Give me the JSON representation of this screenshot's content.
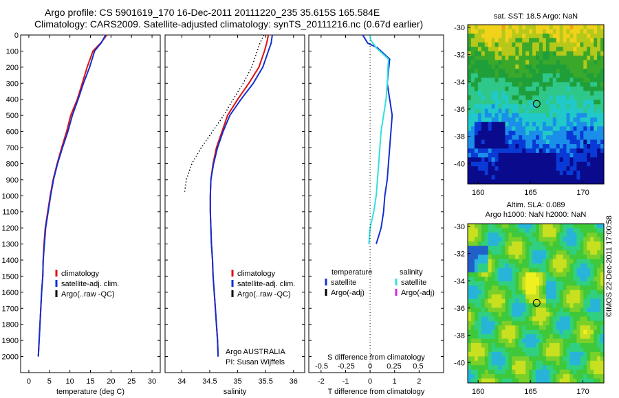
{
  "header": {
    "title_line1": "Argo profile: CS 5901619_170 16-Dec-2011 20111220_235 35.615S 165.584E",
    "title_line2": "Climatology: CARS2009. Satellite-adjusted climatology: synTS_20111216.nc (0.67d earlier)"
  },
  "credit": "©IMOS 22-Dec-2011 17:00:58",
  "colors": {
    "climatology": "#e01010",
    "satellite": "#1030d0",
    "argo": "#000000",
    "salinity_satellite": "#30e0e0",
    "salinity_argo": "#e020e0"
  },
  "chart_data": [
    {
      "type": "line",
      "panel": "temperature profile",
      "xlabel": "temperature (deg C)",
      "xlim": [
        -2,
        32
      ],
      "xticks": [
        0,
        5,
        10,
        15,
        20,
        25,
        30
      ],
      "ylim": [
        2100,
        0
      ],
      "yticks": [
        0,
        100,
        200,
        300,
        400,
        500,
        600,
        700,
        800,
        900,
        1000,
        1100,
        1200,
        1300,
        1400,
        1500,
        1600,
        1700,
        1800,
        1900,
        2000
      ],
      "legend": [
        "climatology",
        "satellite-adj. clim.",
        "Argo(..raw -QC)"
      ],
      "series": [
        {
          "name": "climatology",
          "color_key": "climatology",
          "x": [
            19.0,
            17.5,
            15.6,
            14.2,
            13.0,
            11.8,
            10.2,
            9.2,
            8.0,
            6.9,
            5.9,
            5.2,
            4.6,
            4.0,
            3.7,
            3.5,
            3.4,
            3.1,
            2.9,
            2.7,
            2.5,
            2.3
          ],
          "y": [
            0,
            50,
            100,
            200,
            300,
            400,
            500,
            600,
            700,
            800,
            900,
            1000,
            1100,
            1200,
            1300,
            1400,
            1500,
            1600,
            1700,
            1800,
            1900,
            2000
          ]
        },
        {
          "name": "satellite-adj. clim.",
          "color_key": "satellite",
          "x": [
            18.7,
            17.6,
            16.0,
            14.8,
            13.3,
            12.0,
            10.6,
            9.5,
            8.2,
            7.0,
            6.0,
            5.3,
            4.7,
            4.1,
            3.8,
            3.5,
            3.4,
            3.1,
            2.9,
            2.7,
            2.5,
            2.3
          ],
          "y": [
            0,
            50,
            100,
            200,
            300,
            400,
            500,
            600,
            700,
            800,
            900,
            1000,
            1100,
            1200,
            1300,
            1400,
            1500,
            1600,
            1700,
            1800,
            1900,
            2000
          ]
        }
      ]
    },
    {
      "type": "line",
      "panel": "salinity profile",
      "xlabel": "salinity",
      "xlim": [
        33.7,
        36.2
      ],
      "xticks": [
        34,
        34.5,
        35,
        35.5,
        36
      ],
      "ylim": [
        2100,
        0
      ],
      "legend": [
        "climatology",
        "satellite-adj. clim.",
        "Argo(..raw -QC)"
      ],
      "annotation": [
        "Argo AUSTRALIA",
        "PI: Susan Wijffels"
      ],
      "series": [
        {
          "name": "climatology",
          "color_key": "climatology",
          "x": [
            35.55,
            35.52,
            35.48,
            35.38,
            35.2,
            35.0,
            34.82,
            34.72,
            34.62,
            34.56,
            34.52,
            34.51,
            34.51,
            34.52,
            34.53,
            34.55,
            34.56,
            34.58,
            34.6,
            34.62,
            34.64,
            34.65
          ],
          "y": [
            0,
            50,
            100,
            200,
            300,
            400,
            500,
            600,
            700,
            800,
            900,
            1000,
            1100,
            1200,
            1300,
            1400,
            1500,
            1600,
            1700,
            1800,
            1900,
            2000
          ]
        },
        {
          "name": "satellite-adj. clim.",
          "color_key": "satellite",
          "x": [
            35.62,
            35.6,
            35.55,
            35.45,
            35.28,
            35.06,
            34.86,
            34.74,
            34.64,
            34.57,
            34.52,
            34.51,
            34.51,
            34.52,
            34.53,
            34.55,
            34.56,
            34.58,
            34.6,
            34.62,
            34.64,
            34.65
          ],
          "y": [
            0,
            50,
            100,
            200,
            300,
            400,
            500,
            600,
            700,
            800,
            900,
            1000,
            1100,
            1200,
            1300,
            1400,
            1500,
            1600,
            1700,
            1800,
            1900,
            2000
          ]
        },
        {
          "name": "Argo(..raw -QC)",
          "color_key": "argo",
          "dotted": true,
          "x": [
            35.47,
            35.4,
            35.35,
            35.25,
            35.1,
            34.92,
            34.75,
            34.55,
            34.35,
            34.18,
            34.08,
            34.05
          ],
          "y": [
            0,
            50,
            100,
            200,
            300,
            400,
            500,
            600,
            700,
            800,
            900,
            980
          ]
        }
      ]
    },
    {
      "type": "line",
      "panel": "difference from climatology",
      "xlabel": "T difference from climatology",
      "xlabel_top": "S difference from climatology",
      "xlim": [
        -2.5,
        3.0
      ],
      "xticks": [
        -2,
        -1,
        0,
        1,
        2
      ],
      "s_ticks": [
        "-0.5",
        "-0.25",
        "0",
        "0.25",
        "0.5"
      ],
      "ylim": [
        2100,
        0
      ],
      "legend_headers": [
        "temperature",
        "salinity"
      ],
      "legend_left": [
        "satellite",
        "Argo(-adj)"
      ],
      "legend_right": [
        "satellite",
        "Argo(-adj)"
      ],
      "series": [
        {
          "name": "temperature satellite",
          "color_key": "satellite",
          "x": [
            -0.3,
            -0.1,
            0.3,
            0.8,
            0.7,
            0.8,
            0.9,
            0.85,
            0.8,
            0.75,
            0.7,
            0.6,
            0.55,
            0.45,
            0.35,
            0.25
          ],
          "y": [
            0,
            50,
            80,
            150,
            300,
            400,
            500,
            600,
            700,
            800,
            900,
            1000,
            1100,
            1200,
            1250,
            1300
          ]
        },
        {
          "name": "salinity satellite",
          "color_key": "salinity_satellite",
          "x": [
            0.0,
            0.02,
            0.25,
            0.75,
            0.7,
            0.65,
            0.55,
            0.45,
            0.4,
            0.35,
            0.3,
            0.25,
            0.15,
            0.0,
            -0.05
          ],
          "y": [
            0,
            30,
            80,
            150,
            300,
            400,
            500,
            600,
            700,
            800,
            900,
            1000,
            1100,
            1200,
            1300
          ]
        }
      ]
    },
    {
      "type": "heatmap",
      "panel": "satellite SST map",
      "title": "sat. SST: 18.5  Argo: NaN",
      "xlim": [
        159.0,
        172.0
      ],
      "ylim": [
        -41.5,
        -29.8
      ],
      "xticks": [
        160,
        165,
        170
      ],
      "yticks": [
        -30,
        -32,
        -34,
        -36,
        -38,
        -40
      ],
      "marker": {
        "lon": 165.584,
        "lat": -35.615
      }
    },
    {
      "type": "heatmap",
      "panel": "altimetry SLA map",
      "title_line1": "Altim. SLA: 0.089",
      "title_line2": "Argo h1000: NaN  h2000: NaN",
      "xlim": [
        159.0,
        172.0
      ],
      "ylim": [
        -41.5,
        -29.8
      ],
      "xticks": [
        160,
        165,
        170
      ],
      "yticks": [
        -30,
        -32,
        -34,
        -36,
        -38,
        -40
      ],
      "marker": {
        "lon": 165.584,
        "lat": -35.615
      }
    }
  ]
}
